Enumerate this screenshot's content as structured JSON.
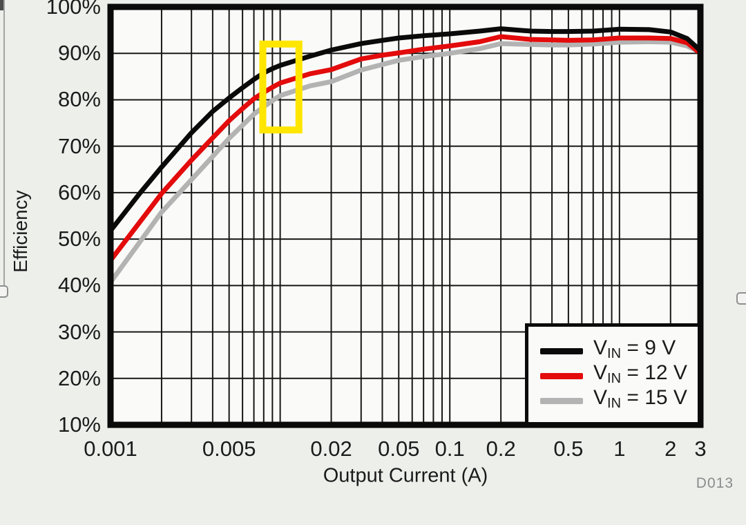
{
  "chart_data": {
    "type": "line",
    "title": "",
    "xlabel": "Output Current (A)",
    "ylabel": "Efficiency",
    "x_scale": "log",
    "xlim": [
      0.001,
      3
    ],
    "ylim": [
      10,
      100
    ],
    "grid": "log minor vertical lines + 10% horizontal lines",
    "legend_position": "bottom-right inside plot",
    "x_ticks": [
      {
        "value": 0.001,
        "label": "0.001"
      },
      {
        "value": 0.005,
        "label": "0.005"
      },
      {
        "value": 0.02,
        "label": "0.02"
      },
      {
        "value": 0.05,
        "label": "0.05"
      },
      {
        "value": 0.1,
        "label": "0.1"
      },
      {
        "value": 0.2,
        "label": "0.2"
      },
      {
        "value": 0.5,
        "label": "0.5"
      },
      {
        "value": 1,
        "label": "1"
      },
      {
        "value": 2,
        "label": "2"
      },
      {
        "value": 3,
        "label": "3"
      }
    ],
    "y_ticks": [
      {
        "value": 100,
        "label": "100%"
      },
      {
        "value": 90,
        "label": "90%"
      },
      {
        "value": 80,
        "label": "80%"
      },
      {
        "value": 70,
        "label": "70%"
      },
      {
        "value": 60,
        "label": "60%"
      },
      {
        "value": 50,
        "label": "50%"
      },
      {
        "value": 40,
        "label": "40%"
      },
      {
        "value": 30,
        "label": "30%"
      },
      {
        "value": 20,
        "label": "20%"
      },
      {
        "value": 10,
        "label": "10%"
      }
    ],
    "series": [
      {
        "name": "VIN = 9 V",
        "color": "#0a0a0a",
        "points": [
          [
            0.001,
            51.8
          ],
          [
            0.0015,
            60.0
          ],
          [
            0.002,
            65.5
          ],
          [
            0.003,
            72.9
          ],
          [
            0.004,
            77.5
          ],
          [
            0.005,
            80.4
          ],
          [
            0.006,
            82.6
          ],
          [
            0.007,
            84.4
          ],
          [
            0.008,
            85.8
          ],
          [
            0.009,
            86.7
          ],
          [
            0.01,
            87.4
          ],
          [
            0.015,
            89.4
          ],
          [
            0.02,
            90.7
          ],
          [
            0.03,
            92.1
          ],
          [
            0.04,
            92.8
          ],
          [
            0.05,
            93.3
          ],
          [
            0.07,
            93.8
          ],
          [
            0.1,
            94.2
          ],
          [
            0.15,
            94.8
          ],
          [
            0.2,
            95.3
          ],
          [
            0.3,
            94.8
          ],
          [
            0.4,
            94.7
          ],
          [
            0.5,
            94.7
          ],
          [
            0.7,
            94.8
          ],
          [
            1,
            95.2
          ],
          [
            1.5,
            95.1
          ],
          [
            2,
            94.6
          ],
          [
            2.5,
            93.2
          ],
          [
            3,
            90.6
          ]
        ]
      },
      {
        "name": "VIN = 12 V",
        "color": "#e30b0b",
        "points": [
          [
            0.001,
            45.4
          ],
          [
            0.002,
            59.8
          ],
          [
            0.003,
            67.0
          ],
          [
            0.004,
            71.8
          ],
          [
            0.005,
            75.5
          ],
          [
            0.006,
            78.1
          ],
          [
            0.007,
            80.2
          ],
          [
            0.008,
            81.6
          ],
          [
            0.009,
            82.7
          ],
          [
            0.01,
            83.6
          ],
          [
            0.015,
            85.6
          ],
          [
            0.02,
            86.5
          ],
          [
            0.03,
            88.8
          ],
          [
            0.04,
            89.6
          ],
          [
            0.05,
            90.1
          ],
          [
            0.07,
            90.9
          ],
          [
            0.1,
            91.6
          ],
          [
            0.15,
            92.5
          ],
          [
            0.2,
            93.6
          ],
          [
            0.3,
            93.0
          ],
          [
            0.4,
            92.9
          ],
          [
            0.5,
            92.8
          ],
          [
            0.7,
            92.9
          ],
          [
            1,
            93.3
          ],
          [
            1.5,
            93.3
          ],
          [
            2,
            93.2
          ],
          [
            2.5,
            92.3
          ],
          [
            3,
            90.0
          ]
        ]
      },
      {
        "name": "VIN = 15 V",
        "color": "#b3b3b3",
        "points": [
          [
            0.001,
            40.7
          ],
          [
            0.002,
            55.8
          ],
          [
            0.003,
            62.8
          ],
          [
            0.004,
            67.8
          ],
          [
            0.005,
            71.7
          ],
          [
            0.006,
            74.5
          ],
          [
            0.007,
            76.9
          ],
          [
            0.008,
            78.5
          ],
          [
            0.009,
            79.8
          ],
          [
            0.01,
            80.9
          ],
          [
            0.015,
            83.0
          ],
          [
            0.02,
            83.9
          ],
          [
            0.03,
            86.4
          ],
          [
            0.04,
            87.6
          ],
          [
            0.05,
            88.5
          ],
          [
            0.07,
            89.3
          ],
          [
            0.1,
            90.0
          ],
          [
            0.15,
            91.0
          ],
          [
            0.2,
            92.1
          ],
          [
            0.3,
            91.9
          ],
          [
            0.4,
            91.8
          ],
          [
            0.5,
            91.8
          ],
          [
            0.7,
            92.0
          ],
          [
            1,
            92.4
          ],
          [
            1.5,
            92.5
          ],
          [
            2,
            92.4
          ],
          [
            2.5,
            91.6
          ],
          [
            3,
            90.2
          ]
        ]
      }
    ],
    "annotations": [
      {
        "type": "rect",
        "color": "#ffe600",
        "stroke_width": 10,
        "x_range": [
          0.0079,
          0.0129
        ],
        "y_range": [
          73.5,
          92.0
        ],
        "meaning": "yellow highlight box around the 0.008-0.013 A region"
      }
    ]
  },
  "legend": {
    "items": [
      {
        "prefix": "V",
        "sub": "IN",
        "rest": " = 9 V",
        "color": "#0a0a0a"
      },
      {
        "prefix": "V",
        "sub": "IN",
        "rest": " = 12 V",
        "color": "#e30b0b"
      },
      {
        "prefix": "V",
        "sub": "IN",
        "rest": " = 15 V",
        "color": "#b3b3b3"
      }
    ]
  },
  "watermark": "D013",
  "colors": {
    "page_background": "#edefeb",
    "plot_background": "#fafaf8",
    "grid": "#161616",
    "border": "#0a0a0a",
    "highlight": "#ffe600"
  }
}
